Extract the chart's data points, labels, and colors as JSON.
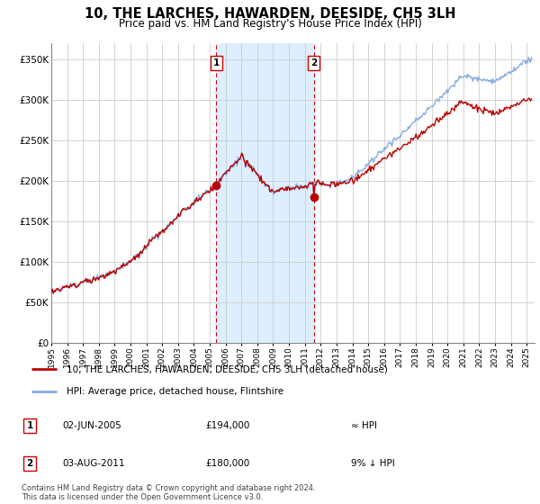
{
  "title": "10, THE LARCHES, HAWARDEN, DEESIDE, CH5 3LH",
  "subtitle": "Price paid vs. HM Land Registry's House Price Index (HPI)",
  "legend_label_red": "10, THE LARCHES, HAWARDEN, DEESIDE, CH5 3LH (detached house)",
  "legend_label_blue": "HPI: Average price, detached house, Flintshire",
  "transaction1_date": "02-JUN-2005",
  "transaction1_price": "£194,000",
  "transaction1_hpi": "≈ HPI",
  "transaction1_year": 2005.42,
  "transaction1_price_val": 194000,
  "transaction2_date": "03-AUG-2011",
  "transaction2_price": "£180,000",
  "transaction2_hpi": "9% ↓ HPI",
  "transaction2_year": 2011.58,
  "transaction2_price_val": 180000,
  "footer": "Contains HM Land Registry data © Crown copyright and database right 2024.\nThis data is licensed under the Open Government Licence v3.0.",
  "ylim": [
    0,
    370000
  ],
  "xlim_start": 1995,
  "xlim_end": 2025.5,
  "grid_color": "#cccccc",
  "red_color": "#bb0000",
  "blue_color": "#88aadd",
  "shaded_color": "#ddeeff",
  "vline_color": "#cc0000"
}
